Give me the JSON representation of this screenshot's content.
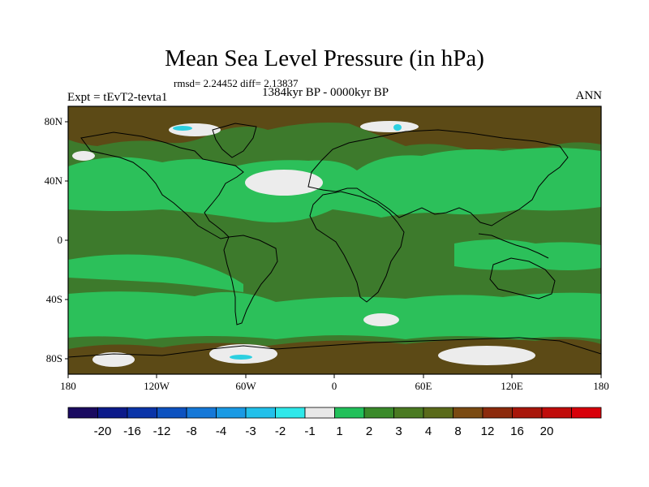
{
  "title": "Mean Sea Level Pressure (in hPa)",
  "stats": "rmsd= 2.24452 diff= 2.13837",
  "period": "1384kyr BP - 0000kyr BP",
  "experiment": "Expt = tEvT2-tevta1",
  "season": "ANN",
  "lat_labels": [
    "80N",
    "40N",
    "0",
    "40S",
    "80S"
  ],
  "lon_labels": [
    "180",
    "120W",
    "60W",
    "0",
    "60E",
    "120E",
    "180"
  ],
  "colorbar": {
    "colors": [
      "#1a0a60",
      "#0c1a8a",
      "#0a34a8",
      "#0d52c0",
      "#1578d8",
      "#1a9ae4",
      "#22c0ea",
      "#2ee8ea",
      "#e8e8e8",
      "#22c05a",
      "#3a8a2a",
      "#4a7a22",
      "#5a6a1a",
      "#7a4a12",
      "#8c2a0c",
      "#a8160a",
      "#c00c0a",
      "#d8000a"
    ],
    "labels": [
      "-20",
      "-16",
      "-12",
      "-8",
      "-4",
      "-3",
      "-2",
      "-1",
      "1",
      "2",
      "3",
      "4",
      "8",
      "12",
      "16",
      "20"
    ]
  },
  "field_colors": {
    "dark_green": "#3d7a2c",
    "light_green": "#2cc05a",
    "brown": "#5c4a16",
    "white": "#ececec",
    "cyan": "#2cd0e0"
  }
}
